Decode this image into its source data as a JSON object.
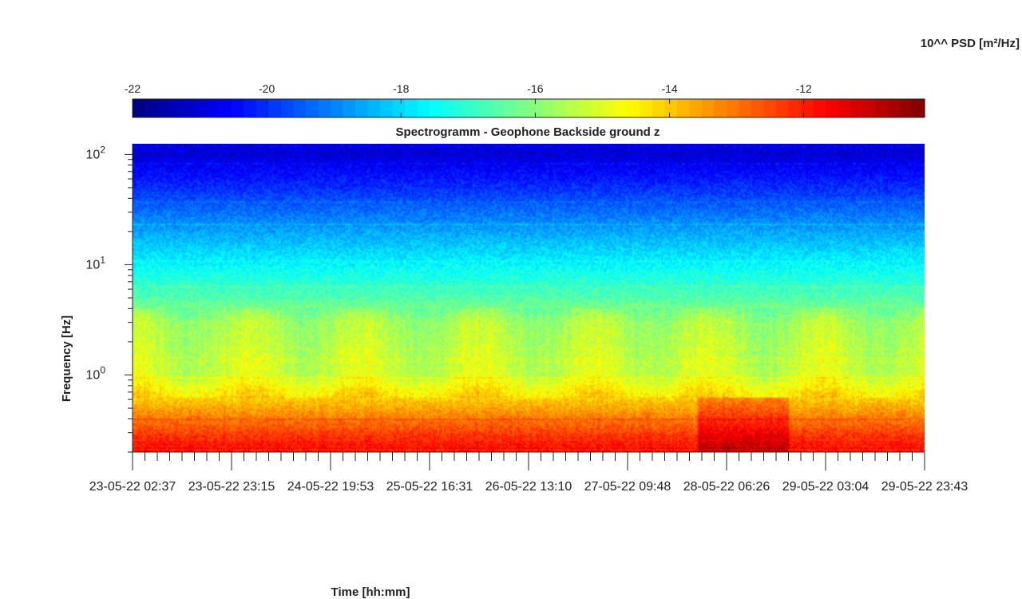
{
  "chart_data": {
    "type": "heatmap",
    "title": "Spectrogramm - Geophone Backside ground z",
    "xlabel": "Time [hh:mm]",
    "ylabel": "Frequency [Hz]",
    "colorbar_label": "10^^ PSD [m²/Hz]",
    "colormap": "jet",
    "y_scale": "log",
    "ylim": [
      0.2,
      125
    ],
    "clim": [
      -22,
      -10.2
    ],
    "x_tick_labels": [
      "23-05-22 02:37",
      "23-05-22 23:15",
      "24-05-22 19:53",
      "25-05-22 16:31",
      "26-05-22 13:10",
      "27-05-22 09:48",
      "28-05-22 06:26",
      "29-05-22 03:04",
      "29-05-22 23:43"
    ],
    "y_ticks": [
      {
        "base": "10",
        "exp": "0",
        "value": 1
      },
      {
        "base": "10",
        "exp": "1",
        "value": 10
      },
      {
        "base": "10",
        "exp": "2",
        "value": 100
      }
    ],
    "colorbar_ticks": [
      "-22",
      "-20",
      "-18",
      "-16",
      "-14",
      "-12"
    ],
    "colorbar_tick_values": [
      -22,
      -20,
      -18,
      -16,
      -14,
      -12
    ],
    "psd_profile": [
      {
        "freq_hz": 100,
        "log10_psd": -21.0
      },
      {
        "freq_hz": 50,
        "log10_psd": -20.0
      },
      {
        "freq_hz": 20,
        "log10_psd": -18.6
      },
      {
        "freq_hz": 10,
        "log10_psd": -17.6
      },
      {
        "freq_hz": 5,
        "log10_psd": -16.6
      },
      {
        "freq_hz": 3,
        "log10_psd": -15.6
      },
      {
        "freq_hz": 1,
        "log10_psd": -15.2
      },
      {
        "freq_hz": 0.5,
        "log10_psd": -13.6
      },
      {
        "freq_hz": 0.25,
        "log10_psd": -12.0
      }
    ]
  }
}
